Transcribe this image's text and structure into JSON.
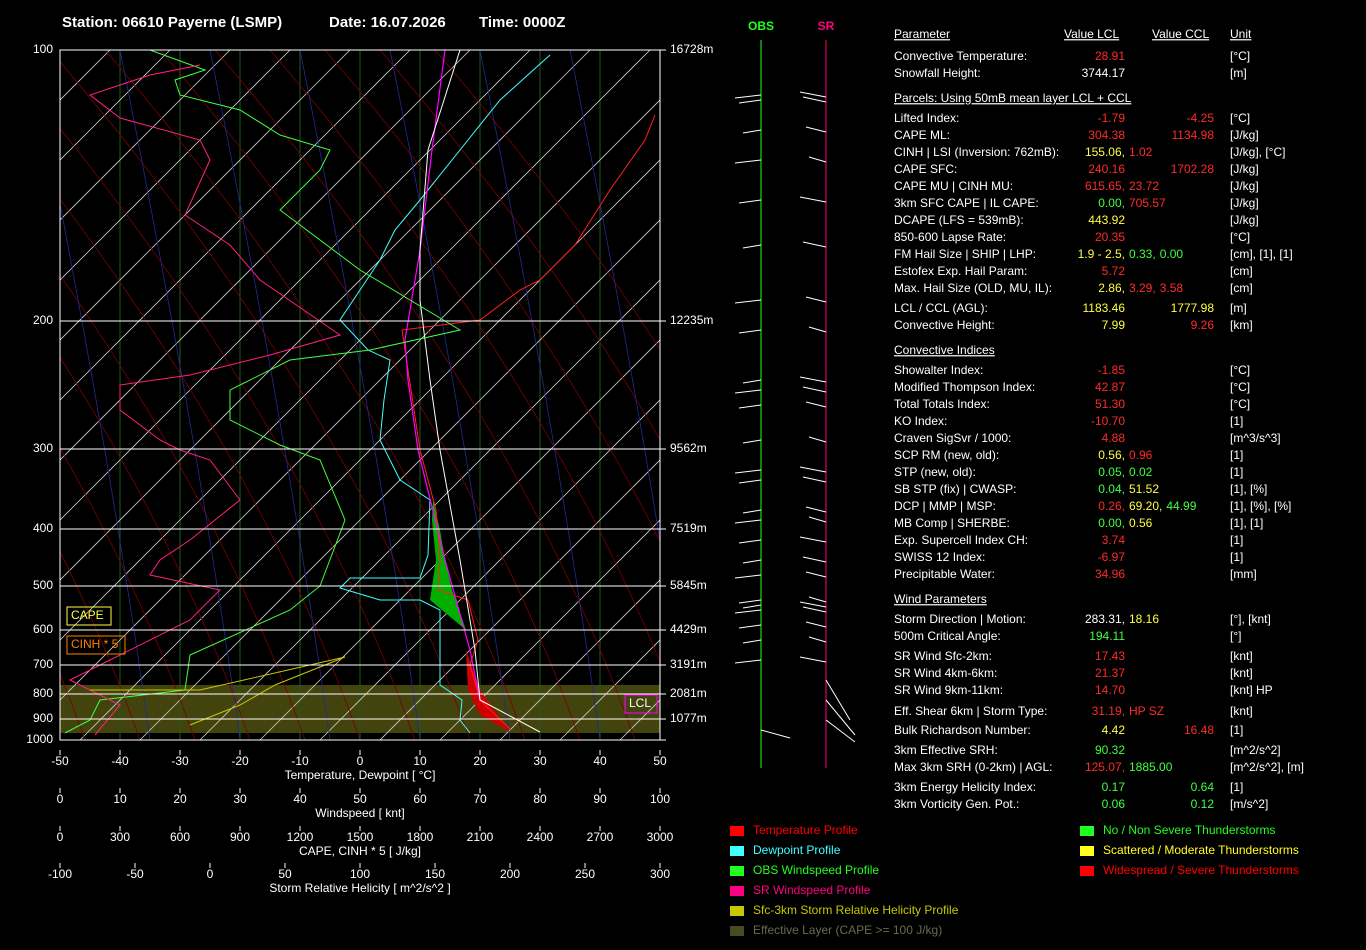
{
  "header": {
    "station": "Station: 06610 Payerne (LSMP)",
    "date": "Date: 16.07.2026",
    "time": "Time: 0000Z"
  },
  "pressure_levels": {
    "labels": [
      "100",
      "200",
      "300",
      "400",
      "500",
      "600",
      "700",
      "800",
      "900",
      "1000"
    ],
    "heights": [
      "16728m",
      "12235m",
      "9562m",
      "7519m",
      "5845m",
      "4429m",
      "3191m",
      "2081m",
      "1077m",
      null
    ]
  },
  "x_axes": [
    {
      "title": "Temperature, Dewpoint  [ °C]",
      "lim": [
        -50,
        50
      ],
      "ticks": [
        -50,
        -40,
        -30,
        -20,
        -10,
        0,
        10,
        20,
        30,
        40,
        50
      ]
    },
    {
      "title": "Windspeed  [ knt]",
      "lim": [
        0,
        100
      ],
      "ticks": [
        0,
        10,
        20,
        30,
        40,
        50,
        60,
        70,
        80,
        90,
        100
      ]
    },
    {
      "title": "CAPE, CINH * 5  [ J/kg]",
      "lim": [
        0,
        3000
      ],
      "ticks": [
        0,
        300,
        600,
        900,
        1200,
        1500,
        1800,
        2100,
        2400,
        2700,
        3000
      ]
    },
    {
      "title": "Storm Relative Helicity  [ m^2/s^2 ]",
      "lim": [
        -100,
        300
      ],
      "ticks": [
        -100,
        -50,
        0,
        50,
        100,
        150,
        200,
        250,
        300
      ]
    }
  ],
  "plot_labels": {
    "cape": "CAPE",
    "cinh": "CINH * 5",
    "lcl": "LCL",
    "obs": "OBS",
    "sr": "SR"
  },
  "table": {
    "header": [
      "Parameter",
      "Value LCL",
      "Value CCL",
      "Unit"
    ],
    "rows": [
      {
        "label": "Convective Temperature:",
        "lcl": [
          {
            "text": "28.91",
            "color": "#ff2a2a"
          }
        ],
        "unit": "[°C]"
      },
      {
        "label": "Snowfall Height:",
        "lcl": [
          {
            "text": "3744.17",
            "color": "#ffffff"
          }
        ],
        "unit": "[m]"
      },
      {
        "section": "Parcels: Using 50mB mean layer LCL + CCL"
      },
      {
        "label": "Lifted Index:",
        "lcl": [
          {
            "text": "-1.79",
            "color": "#ff2a2a"
          }
        ],
        "ccl": {
          "text": "-4.25",
          "color": "#ff2a2a"
        },
        "unit": "[°C]"
      },
      {
        "label": "CAPE ML:",
        "lcl": [
          {
            "text": "304.38",
            "color": "#ff2a2a"
          }
        ],
        "ccl": {
          "text": "1134.98",
          "color": "#ff2a2a"
        },
        "unit": "[J/kg]"
      },
      {
        "label": "CINH | LSI (Inversion: 762mB):",
        "lcl": [
          {
            "text": "155.06,",
            "color": "#ffff40"
          },
          {
            "text": "1.02",
            "color": "#ff2a2a"
          }
        ],
        "unit": "[J/kg], [°C]"
      },
      {
        "label": "CAPE SFC:",
        "lcl": [
          {
            "text": "240.16",
            "color": "#ff2a2a"
          }
        ],
        "ccl": {
          "text": "1702.28",
          "color": "#ff2a2a"
        },
        "unit": "[J/kg]"
      },
      {
        "label": "CAPE MU | CINH MU:",
        "lcl": [
          {
            "text": "615.65,",
            "color": "#ff2a2a"
          },
          {
            "text": "23.72",
            "color": "#ff2a2a"
          }
        ],
        "unit": "[J/kg]"
      },
      {
        "label": "3km SFC CAPE | IL CAPE:",
        "lcl": [
          {
            "text": "0.00,",
            "color": "#40ff40"
          },
          {
            "text": "705.57",
            "color": "#ff2a2a"
          }
        ],
        "unit": "[J/kg]"
      },
      {
        "label": "DCAPE (LFS = 539mB):",
        "lcl": [
          {
            "text": "443.92",
            "color": "#ffff40"
          }
        ],
        "unit": "[J/kg]"
      },
      {
        "label": "850-600 Lapse Rate:",
        "lcl": [
          {
            "text": "20.35",
            "color": "#ff2a2a"
          }
        ],
        "unit": "[°C]"
      },
      {
        "label": "FM Hail Size | SHIP | LHP:",
        "lcl": [
          {
            "text": "1.9 - 2.5,",
            "color": "#ffff40"
          },
          {
            "text": "0.33,",
            "color": "#40ff40"
          },
          {
            "text": "0.00",
            "color": "#40ff40"
          }
        ],
        "unit": "[cm], [1], [1]"
      },
      {
        "label": "Estofex Exp. Hail Param:",
        "lcl": [
          {
            "text": "5.72",
            "color": "#ff2a2a"
          }
        ],
        "unit": "[cm]"
      },
      {
        "label": "Max. Hail Size (OLD, MU, IL):",
        "lcl": [
          {
            "text": "2.86,",
            "color": "#ffff40"
          },
          {
            "text": "3.29,",
            "color": "#ff2a2a"
          },
          {
            "text": "3.58",
            "color": "#ff2a2a"
          }
        ],
        "unit": "[cm]"
      },
      {
        "label": "LCL / CCL (AGL):",
        "lcl": [
          {
            "text": "1183.46",
            "color": "#ffff40"
          }
        ],
        "ccl": {
          "text": "1777.98",
          "color": "#ffff40"
        },
        "unit": "[m]"
      },
      {
        "label": "Convective Height:",
        "lcl": [
          {
            "text": "7.99",
            "color": "#ffff40"
          }
        ],
        "ccl": {
          "text": "9.26",
          "color": "#ff2a2a"
        },
        "unit": "[km]"
      },
      {
        "section": "Convective Indices"
      },
      {
        "label": "Showalter Index:",
        "lcl": [
          {
            "text": "-1.85",
            "color": "#ff2a2a"
          }
        ],
        "unit": "[°C]"
      },
      {
        "label": "Modified Thompson Index:",
        "lcl": [
          {
            "text": "42.87",
            "color": "#ff2a2a"
          }
        ],
        "unit": "[°C]"
      },
      {
        "label": "Total Totals Index:",
        "lcl": [
          {
            "text": "51.30",
            "color": "#ff2a2a"
          }
        ],
        "unit": "[°C]"
      },
      {
        "label": "KO Index:",
        "lcl": [
          {
            "text": "-10.70",
            "color": "#ff2a2a"
          }
        ],
        "unit": "[1]"
      },
      {
        "label": "Craven SigSvr / 1000:",
        "lcl": [
          {
            "text": "4.88",
            "color": "#ff2a2a"
          }
        ],
        "unit": "[m^3/s^3]"
      },
      {
        "label": "SCP RM (new, old):",
        "lcl": [
          {
            "text": "0.56,",
            "color": "#ffff40"
          },
          {
            "text": "0.96",
            "color": "#ff2a2a"
          }
        ],
        "unit": "[1]"
      },
      {
        "label": "STP (new, old):",
        "lcl": [
          {
            "text": "0.05,",
            "color": "#40ff40"
          },
          {
            "text": "0.02",
            "color": "#40ff40"
          }
        ],
        "unit": "[1]"
      },
      {
        "label": "SB STP (fix) | CWASP:",
        "lcl": [
          {
            "text": "0.04,",
            "color": "#40ff40"
          },
          {
            "text": "51.52",
            "color": "#ffff40"
          }
        ],
        "unit": "[1], [%]"
      },
      {
        "label": "DCP | MMP | MSP:",
        "lcl": [
          {
            "text": "0.26,",
            "color": "#ff2a2a"
          },
          {
            "text": "69.20,",
            "color": "#ffff40"
          },
          {
            "text": "44.99",
            "color": "#40ff40"
          }
        ],
        "unit": "[1], [%], [%]"
      },
      {
        "label": "MB Comp | SHERBE:",
        "lcl": [
          {
            "text": "0.00,",
            "color": "#40ff40"
          },
          {
            "text": "0.56",
            "color": "#ffff40"
          }
        ],
        "unit": "[1], [1]"
      },
      {
        "label": "Exp. Supercell Index CH:",
        "lcl": [
          {
            "text": "3.74",
            "color": "#ff2a2a"
          }
        ],
        "unit": "[1]"
      },
      {
        "label": "SWISS 12 Index:",
        "lcl": [
          {
            "text": "-6.97",
            "color": "#ff2a2a"
          }
        ],
        "unit": "[1]"
      },
      {
        "label": "Precipitable Water:",
        "lcl": [
          {
            "text": "34.96",
            "color": "#ff2a2a"
          }
        ],
        "unit": "[mm]"
      },
      {
        "section": "Wind Parameters"
      },
      {
        "label": "Storm Direction | Motion:",
        "lcl": [
          {
            "text": "283.31,",
            "color": "#ffffff"
          },
          {
            "text": "18.16",
            "color": "#ffff40"
          }
        ],
        "unit": "[°], [knt]"
      },
      {
        "label": "500m Critical Angle:",
        "lcl": [
          {
            "text": "194.11",
            "color": "#40ff40"
          }
        ],
        "unit": "[°]"
      },
      {
        "label": "SR Wind Sfc-2km:",
        "lcl": [
          {
            "text": "17.43",
            "color": "#ff2a2a"
          }
        ],
        "unit": "[knt]"
      },
      {
        "label": "SR Wind 4km-6km:",
        "lcl": [
          {
            "text": "21.37",
            "color": "#ff2a2a"
          }
        ],
        "unit": "[knt]"
      },
      {
        "label": "SR Wind 9km-11km:",
        "lcl": [
          {
            "text": "14.70",
            "color": "#ff2a2a"
          }
        ],
        "unit": "[knt] HP"
      },
      {
        "label": "Eff. Shear 6km | Storm Type:",
        "lcl": [
          {
            "text": "31.19,",
            "color": "#ff2a2a"
          },
          {
            "text": "HP SZ",
            "color": "#ff2a2a"
          }
        ],
        "unit": "[knt]"
      },
      {
        "label": "Bulk Richardson Number:",
        "lcl": [
          {
            "text": "4.42",
            "color": "#ffff40"
          }
        ],
        "ccl": {
          "text": "16.48",
          "color": "#ff2a2a"
        },
        "unit": "[1]"
      },
      {
        "label": "3km Effective SRH:",
        "lcl": [
          {
            "text": "90.32",
            "color": "#40ff40"
          }
        ],
        "unit": "[m^2/s^2]"
      },
      {
        "label": "Max 3km SRH (0-2km) | AGL:",
        "lcl": [
          {
            "text": "125.07,",
            "color": "#ff2a2a"
          },
          {
            "text": "1885.00",
            "color": "#40ff40"
          }
        ],
        "unit": "[m^2/s^2], [m]"
      },
      {
        "label": "3km Energy Helicity Index:",
        "lcl": [
          {
            "text": "0.17",
            "color": "#40ff40"
          }
        ],
        "ccl": {
          "text": "0.64",
          "color": "#40ff40"
        },
        "unit": "[1]"
      },
      {
        "label": "3km Vorticity Gen. Pot.:",
        "lcl": [
          {
            "text": "0.06",
            "color": "#40ff40"
          }
        ],
        "ccl": {
          "text": "0.12",
          "color": "#40ff40"
        },
        "unit": "[m/s^2]"
      }
    ]
  },
  "legend_profiles": [
    {
      "label": "Temperature Profile",
      "color": "#ff0000"
    },
    {
      "label": "Dewpoint Profile",
      "color": "#40ffff"
    },
    {
      "label": "OBS Windspeed Profile",
      "color": "#20ff20"
    },
    {
      "label": "SR Windspeed Profile",
      "color": "#ff0080"
    },
    {
      "label": "Sfc-3km Storm Relative Helicity Profile",
      "color": "#c8c800"
    },
    {
      "label": "Effective Layer (CAPE >= 100 J/kg)",
      "color": "#4a4a20"
    }
  ],
  "legend_storms": [
    {
      "label": "No / Non Severe Thunderstorms",
      "color": "#20ff20"
    },
    {
      "label": "Scattered / Moderate Thunderstorms",
      "color": "#ffff20"
    },
    {
      "label": "Widespread / Severe Thunderstorms",
      "color": "#ff0000"
    }
  ]
}
